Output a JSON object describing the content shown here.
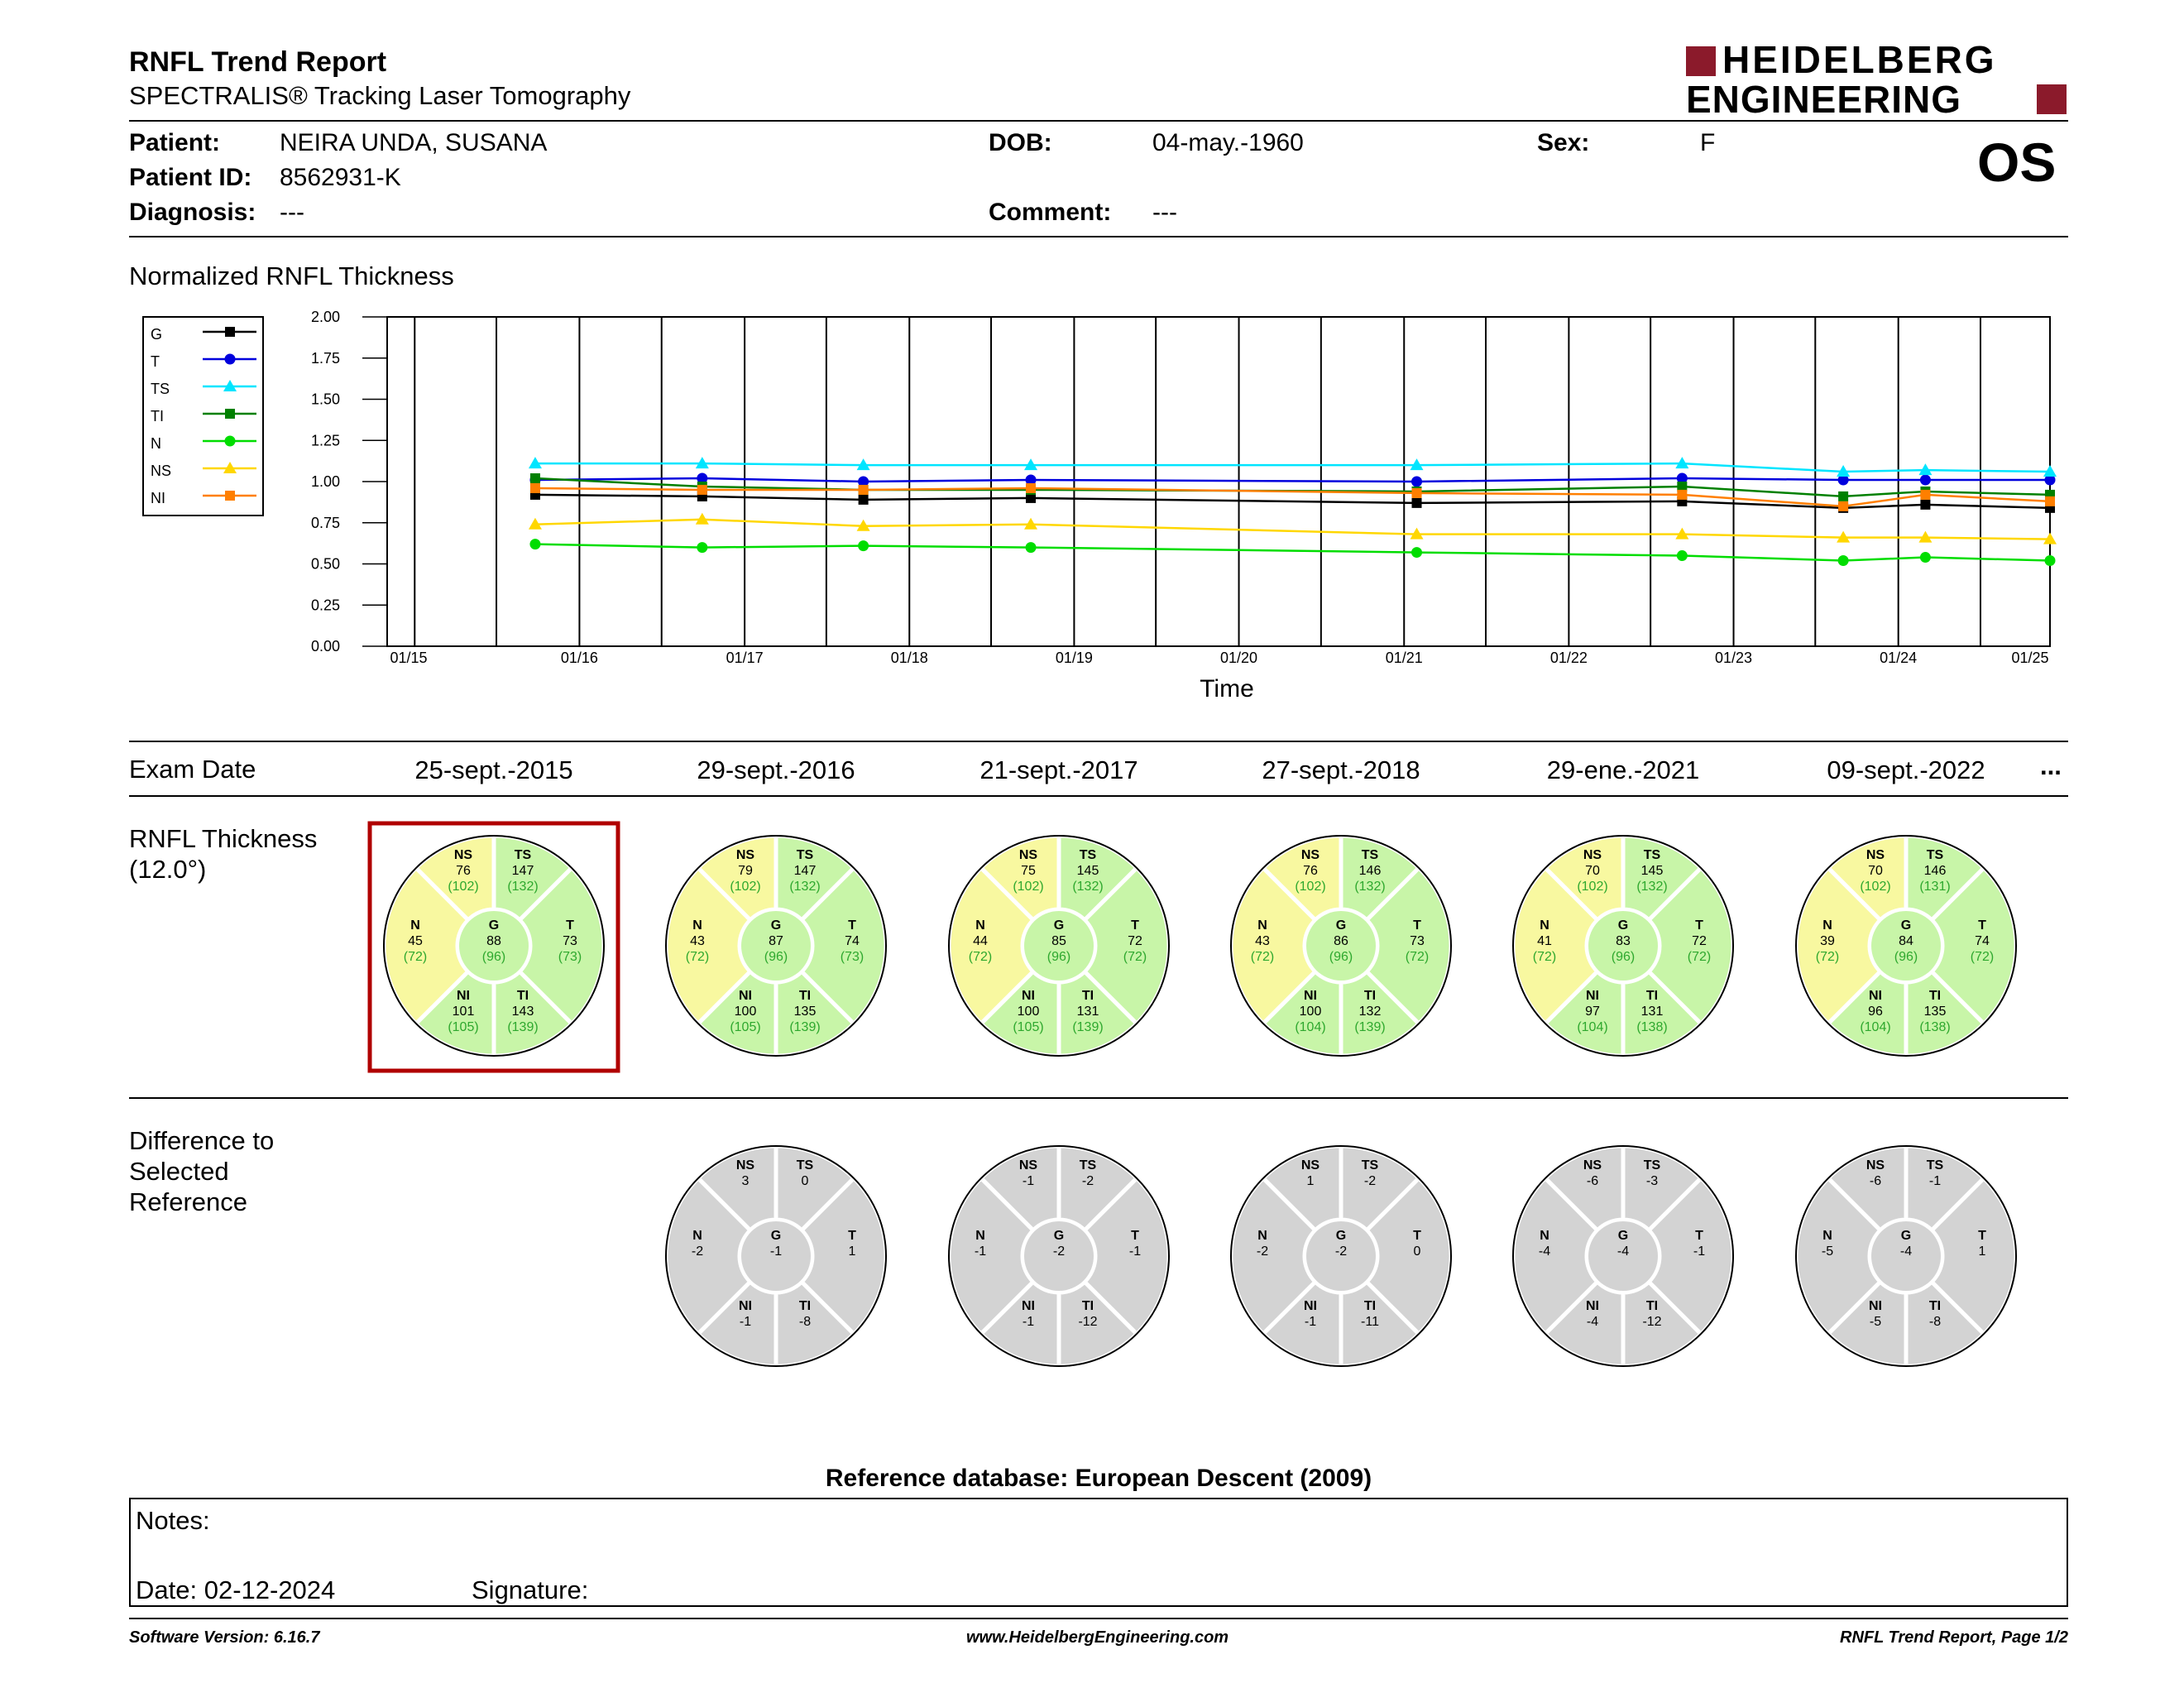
{
  "header": {
    "title": "RNFL Trend Report",
    "subtitle": "SPECTRALIS® Tracking Laser Tomography",
    "logo_line1": "HEIDELBERG",
    "logo_line2": "ENGINEERING",
    "eye": "OS"
  },
  "patient": {
    "patient_label": "Patient:",
    "patient_value": "NEIRA UNDA, SUSANA",
    "id_label": "Patient ID:",
    "id_value": "8562931-K",
    "diagnosis_label": "Diagnosis:",
    "diagnosis_value": "---",
    "dob_label": "DOB:",
    "dob_value": "04-may.-1960",
    "comment_label": "Comment:",
    "comment_value": "---",
    "sex_label": "Sex:",
    "sex_value": "F"
  },
  "chart_data": {
    "type": "line",
    "title": "Normalized RNFL Thickness",
    "xlabel": "Time",
    "ylabel": "",
    "ylim": [
      0,
      2
    ],
    "y_ticks": [
      "2.00",
      "1.75",
      "1.50",
      "1.25",
      "1.00",
      "0.75",
      "0.50",
      "0.25",
      "0.00"
    ],
    "x_ticks": [
      "01/15",
      "01/16",
      "01/17",
      "01/18",
      "01/19",
      "01/20",
      "01/21",
      "01/22",
      "01/23",
      "01/24",
      "01/25"
    ],
    "x_dates": [
      "2015-09-25",
      "2016-09-29",
      "2017-09-21",
      "2018-09-27",
      "2021-01-29",
      "2022-09-09",
      "2023-09-01",
      "2024-03-01",
      "2024-12-02"
    ],
    "series": [
      {
        "name": "G",
        "color": "#000000",
        "marker": "square",
        "values": [
          0.92,
          0.91,
          0.89,
          0.9,
          0.87,
          0.88,
          0.84,
          0.86,
          0.84
        ]
      },
      {
        "name": "T",
        "color": "#0000dd",
        "marker": "circle",
        "values": [
          1.01,
          1.02,
          1.0,
          1.01,
          1.0,
          1.02,
          1.01,
          1.01,
          1.01
        ]
      },
      {
        "name": "TS",
        "color": "#00e5ff",
        "marker": "triangle",
        "values": [
          1.11,
          1.11,
          1.1,
          1.1,
          1.1,
          1.11,
          1.06,
          1.07,
          1.06
        ]
      },
      {
        "name": "TI",
        "color": "#008000",
        "marker": "square",
        "values": [
          1.02,
          0.97,
          0.95,
          0.95,
          0.94,
          0.97,
          0.91,
          0.94,
          0.92
        ]
      },
      {
        "name": "N",
        "color": "#00dd00",
        "marker": "circle",
        "values": [
          0.62,
          0.6,
          0.61,
          0.6,
          0.57,
          0.55,
          0.52,
          0.54,
          0.52
        ]
      },
      {
        "name": "NS",
        "color": "#ffd700",
        "marker": "triangle",
        "values": [
          0.74,
          0.77,
          0.73,
          0.74,
          0.68,
          0.68,
          0.66,
          0.66,
          0.65
        ]
      },
      {
        "name": "NI",
        "color": "#ff7f00",
        "marker": "square",
        "values": [
          0.96,
          0.95,
          0.95,
          0.96,
          0.93,
          0.92,
          0.85,
          0.92,
          0.88
        ]
      }
    ]
  },
  "exam": {
    "label": "Exam Date",
    "dates": [
      "25-sept.-2015",
      "29-sept.-2016",
      "21-sept.-2017",
      "27-sept.-2018",
      "29-ene.-2021",
      "09-sept.-2022"
    ],
    "more": "..."
  },
  "thickness": {
    "label_line1": "RNFL Thickness",
    "label_line2": "(12.0°)",
    "circles": [
      {
        "NS": [
          "76",
          "(102)"
        ],
        "TS": [
          "147",
          "(132)"
        ],
        "N": [
          "45",
          "(72)"
        ],
        "G": [
          "88",
          "(96)"
        ],
        "T": [
          "73",
          "(73)"
        ],
        "NI": [
          "101",
          "(105)"
        ],
        "TI": [
          "143",
          "(139)"
        ]
      },
      {
        "NS": [
          "79",
          "(102)"
        ],
        "TS": [
          "147",
          "(132)"
        ],
        "N": [
          "43",
          "(72)"
        ],
        "G": [
          "87",
          "(96)"
        ],
        "T": [
          "74",
          "(73)"
        ],
        "NI": [
          "100",
          "(105)"
        ],
        "TI": [
          "135",
          "(139)"
        ]
      },
      {
        "NS": [
          "75",
          "(102)"
        ],
        "TS": [
          "145",
          "(132)"
        ],
        "N": [
          "44",
          "(72)"
        ],
        "G": [
          "85",
          "(96)"
        ],
        "T": [
          "72",
          "(72)"
        ],
        "NI": [
          "100",
          "(105)"
        ],
        "TI": [
          "131",
          "(139)"
        ]
      },
      {
        "NS": [
          "76",
          "(102)"
        ],
        "TS": [
          "146",
          "(132)"
        ],
        "N": [
          "43",
          "(72)"
        ],
        "G": [
          "86",
          "(96)"
        ],
        "T": [
          "73",
          "(72)"
        ],
        "NI": [
          "100",
          "(104)"
        ],
        "TI": [
          "132",
          "(139)"
        ]
      },
      {
        "NS": [
          "70",
          "(102)"
        ],
        "TS": [
          "145",
          "(132)"
        ],
        "N": [
          "41",
          "(72)"
        ],
        "G": [
          "83",
          "(96)"
        ],
        "T": [
          "72",
          "(72)"
        ],
        "NI": [
          "97",
          "(104)"
        ],
        "TI": [
          "131",
          "(138)"
        ]
      },
      {
        "NS": [
          "70",
          "(102)"
        ],
        "TS": [
          "146",
          "(131)"
        ],
        "N": [
          "39",
          "(72)"
        ],
        "G": [
          "84",
          "(96)"
        ],
        "T": [
          "74",
          "(72)"
        ],
        "NI": [
          "96",
          "(104)"
        ],
        "TI": [
          "135",
          "(138)"
        ]
      }
    ]
  },
  "difference": {
    "label_line1": "Difference to",
    "label_line2": "Selected",
    "label_line3": "Reference",
    "circles": [
      {
        "NS": "3",
        "TS": "0",
        "N": "-2",
        "G": "-1",
        "T": "1",
        "NI": "-1",
        "TI": "-8"
      },
      {
        "NS": "-1",
        "TS": "-2",
        "N": "-1",
        "G": "-2",
        "T": "-1",
        "NI": "-1",
        "TI": "-12"
      },
      {
        "NS": "1",
        "TS": "-2",
        "N": "-2",
        "G": "-2",
        "T": "0",
        "NI": "-1",
        "TI": "-11"
      },
      {
        "NS": "-6",
        "TS": "-3",
        "N": "-4",
        "G": "-4",
        "T": "-1",
        "NI": "-4",
        "TI": "-12"
      },
      {
        "NS": "-6",
        "TS": "-1",
        "N": "-5",
        "G": "-4",
        "T": "1",
        "NI": "-5",
        "TI": "-8"
      }
    ]
  },
  "colors": {
    "within_normal": "#c8f5a8",
    "borderline": "#f8f8a0",
    "difference": "#d3d3d3",
    "reference_text": "#2ea82e",
    "selected_border": "#b00000",
    "logo_accent": "#8b1a2b"
  },
  "footer": {
    "reference_db": "Reference database: European Descent (2009)",
    "notes_label": "Notes:",
    "date_label": "Date: 02-12-2024",
    "signature_label": "Signature:",
    "software": "Software Version: 6.16.7",
    "website": "www.HeidelbergEngineering.com",
    "page": "RNFL Trend Report, Page 1/2"
  }
}
